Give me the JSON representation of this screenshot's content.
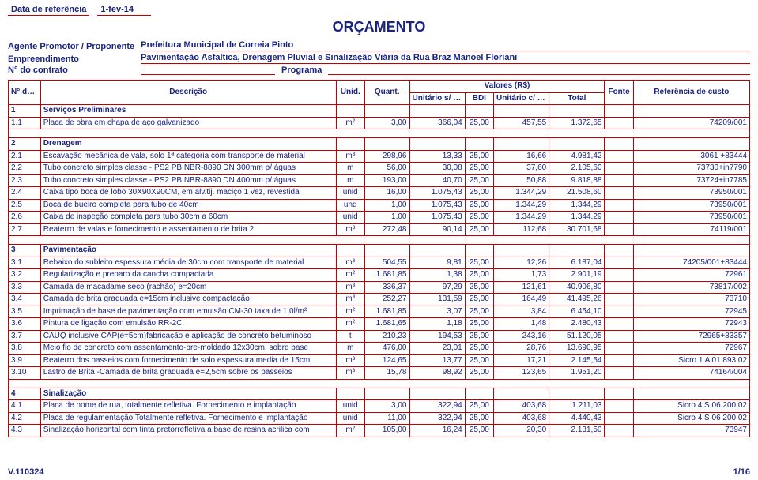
{
  "meta": {
    "data_ref_label": "Data de referência",
    "data_ref_value": "1-fev-14",
    "title": "ORÇAMENTO",
    "agente_label": "Agente Promotor / Proponente",
    "agente_value": "Prefeitura Municipal de Correia Pinto",
    "empreend_label": "Empreendimento",
    "empreend_value": "Pavimentação Asfaltica, Drenagem Pluvial e Sinalização Viária da Rua Braz Manoel Floriani",
    "contrato_label": "N° do contrato",
    "programa_label": "Programa"
  },
  "headers": {
    "item": "N° do Item",
    "desc": "Descrição",
    "unid": "Unid.",
    "quant": "Quant.",
    "valores": "Valores (R$)",
    "usbdi": "Unitário s/ BDI",
    "bdi": "BDI",
    "ucbdi": "Unitário c/ BDI",
    "total": "Total",
    "fonte": "Fonte",
    "ref": "Referência de custo"
  },
  "rows": [
    {
      "t": "section",
      "item": "1",
      "desc": "Serviços Preliminares"
    },
    {
      "t": "row",
      "item": "1.1",
      "desc": "Placa de obra em chapa de aço galvanizado",
      "unid": "m²",
      "quant": "3,00",
      "usbdi": "366,04",
      "bdi": "25,00",
      "ucbdi": "457,55",
      "total": "1.372,65",
      "ref": "74209/001"
    },
    {
      "t": "spacer"
    },
    {
      "t": "section",
      "item": "2",
      "desc": "Drenagem"
    },
    {
      "t": "row",
      "item": "2.1",
      "desc": "Escavação mecânica de vala, solo 1ª categoria com transporte de material",
      "unid": "m³",
      "quant": "298,96",
      "usbdi": "13,33",
      "bdi": "25,00",
      "ucbdi": "16,66",
      "total": "4.981,42",
      "ref": "3061 +83444"
    },
    {
      "t": "row",
      "item": "2.2",
      "desc": "Tubo concreto simples classe - PS2 PB NBR-8890 DN 300mm p/ águas",
      "unid": "m",
      "quant": "56,00",
      "usbdi": "30,08",
      "bdi": "25,00",
      "ucbdi": "37,60",
      "total": "2.105,60",
      "ref": "73730+in7790"
    },
    {
      "t": "row",
      "item": "2.3",
      "desc": "Tubo concreto simples classe - PS2 PB NBR-8890 DN 400mm p/ águas",
      "unid": "m",
      "quant": "193,00",
      "usbdi": "40,70",
      "bdi": "25,00",
      "ucbdi": "50,88",
      "total": "9.818,88",
      "ref": "73724+in7785"
    },
    {
      "t": "row",
      "item": "2.4",
      "desc": "Caixa tipo boca de lobo 30X90X90CM, em alv.tij. maciço 1 vez, revestida",
      "unid": "unid",
      "quant": "16,00",
      "usbdi": "1.075,43",
      "bdi": "25,00",
      "ucbdi": "1.344,29",
      "total": "21.508,60",
      "ref": "73950/001"
    },
    {
      "t": "row",
      "item": "2.5",
      "desc": "Boca de bueiro completa para tubo de 40cm",
      "unid": "und",
      "quant": "1,00",
      "usbdi": "1.075,43",
      "bdi": "25,00",
      "ucbdi": "1.344,29",
      "total": "1.344,29",
      "ref": "73950/001"
    },
    {
      "t": "row",
      "item": "2.6",
      "desc": "Caixa de inspeção completa para tubo 30cm a 60cm",
      "unid": "unid",
      "quant": "1,00",
      "usbdi": "1.075,43",
      "bdi": "25,00",
      "ucbdi": "1.344,29",
      "total": "1.344,29",
      "ref": "73950/001"
    },
    {
      "t": "row",
      "item": "2.7",
      "desc": "Reaterro de valas e fornecimento e assentamento de brita 2",
      "unid": "m³",
      "quant": "272,48",
      "usbdi": "90,14",
      "bdi": "25,00",
      "ucbdi": "112,68",
      "total": "30.701,68",
      "ref": "74119/001"
    },
    {
      "t": "spacer"
    },
    {
      "t": "section",
      "item": "3",
      "desc": "Pavimentação"
    },
    {
      "t": "row",
      "item": "3.1",
      "desc": "Rebaixo do subleito espessura média de 30cm com transporte de material",
      "unid": "m³",
      "quant": "504,55",
      "usbdi": "9,81",
      "bdi": "25,00",
      "ucbdi": "12,26",
      "total": "6.187,04",
      "ref": "74205/001+83444"
    },
    {
      "t": "row",
      "item": "3.2",
      "desc": "Regularização e preparo da cancha compactada",
      "unid": "m²",
      "quant": "1.681,85",
      "usbdi": "1,38",
      "bdi": "25,00",
      "ucbdi": "1,73",
      "total": "2.901,19",
      "ref": "72961"
    },
    {
      "t": "row",
      "item": "3.3",
      "desc": "Camada de macadame seco (rachão) e=20cm",
      "unid": "m³",
      "quant": "336,37",
      "usbdi": "97,29",
      "bdi": "25,00",
      "ucbdi": "121,61",
      "total": "40.906,80",
      "ref": "73817/002"
    },
    {
      "t": "row",
      "item": "3.4",
      "desc": "Camada de brita graduada e=15cm inclusive compactação",
      "unid": "m³",
      "quant": "252,27",
      "usbdi": "131,59",
      "bdi": "25,00",
      "ucbdi": "164,49",
      "total": "41.495,26",
      "ref": "73710"
    },
    {
      "t": "row",
      "item": "3.5",
      "desc": "Imprimação de base de pavimentação com emulsão CM-30 taxa de 1,0l/m²",
      "unid": "m²",
      "quant": "1.681,85",
      "usbdi": "3,07",
      "bdi": "25,00",
      "ucbdi": "3,84",
      "total": "6.454,10",
      "ref": "72945"
    },
    {
      "t": "row",
      "item": "3.6",
      "desc": "Pintura de ligação com emulsão RR-2C.",
      "unid": "m²",
      "quant": "1.681,65",
      "usbdi": "1,18",
      "bdi": "25,00",
      "ucbdi": "1,48",
      "total": "2.480,43",
      "ref": "72943"
    },
    {
      "t": "row",
      "item": "3.7",
      "desc": "CAUQ inclusive CAP(e=5cm)fabricação e aplicação de concreto betuminoso",
      "unid": "t",
      "quant": "210,23",
      "usbdi": "194,53",
      "bdi": "25,00",
      "ucbdi": "243,16",
      "total": "51.120,05",
      "ref": "72965+83357"
    },
    {
      "t": "row",
      "item": "3.8",
      "desc": "Meio fio de concreto com assentamento-pre-moldado 12x30cm, sobre base",
      "unid": "m",
      "quant": "476,00",
      "usbdi": "23,01",
      "bdi": "25,00",
      "ucbdi": "28,76",
      "total": "13.690,95",
      "ref": "72967"
    },
    {
      "t": "row",
      "item": "3.9",
      "desc": "Reaterro dos passeios com fornecimento de solo espessura media de 15cm.",
      "unid": "m³",
      "quant": "124,65",
      "usbdi": "13,77",
      "bdi": "25,00",
      "ucbdi": "17,21",
      "total": "2.145,54",
      "ref": "Sicro 1 A 01 893 02"
    },
    {
      "t": "row",
      "item": "3.10",
      "desc": "Lastro de Brita -Camada de brita graduada e=2,5cm sobre os passeios",
      "unid": "m³",
      "quant": "15,78",
      "usbdi": "98,92",
      "bdi": "25,00",
      "ucbdi": "123,65",
      "total": "1.951,20",
      "ref": "74164/004"
    },
    {
      "t": "spacer"
    },
    {
      "t": "section",
      "item": "4",
      "desc": "Sinalização"
    },
    {
      "t": "row",
      "item": "4.1",
      "desc": "Placa de nome de rua, totalmente refletiva. Fornecimento e implantação",
      "unid": "unid",
      "quant": "3,00",
      "usbdi": "322,94",
      "bdi": "25,00",
      "ucbdi": "403,68",
      "total": "1.211,03",
      "ref": "Sicro 4 S 06 200 02"
    },
    {
      "t": "row",
      "item": "4.2",
      "desc": "Placa de regulamentação.Totalmente refletiva. Fornecimento e implantação",
      "unid": "unid",
      "quant": "11,00",
      "usbdi": "322,94",
      "bdi": "25,00",
      "ucbdi": "403,68",
      "total": "4.440,43",
      "ref": "Sicro 4 S 06 200 02"
    },
    {
      "t": "row",
      "item": "4.3",
      "desc": "Sinalização horizontal com tinta pretorrefletiva a base de resina acrilica com",
      "unid": "m²",
      "quant": "105,00",
      "usbdi": "16,24",
      "bdi": "25,00",
      "ucbdi": "20,30",
      "total": "2.131,50",
      "ref": "73947"
    }
  ],
  "footer": {
    "left": "V.110324",
    "right": "1/16"
  },
  "style": {
    "border_color": "#c00000",
    "text_color": "#1a237e",
    "fontsize_body": 10,
    "fontsize_title": 18
  }
}
